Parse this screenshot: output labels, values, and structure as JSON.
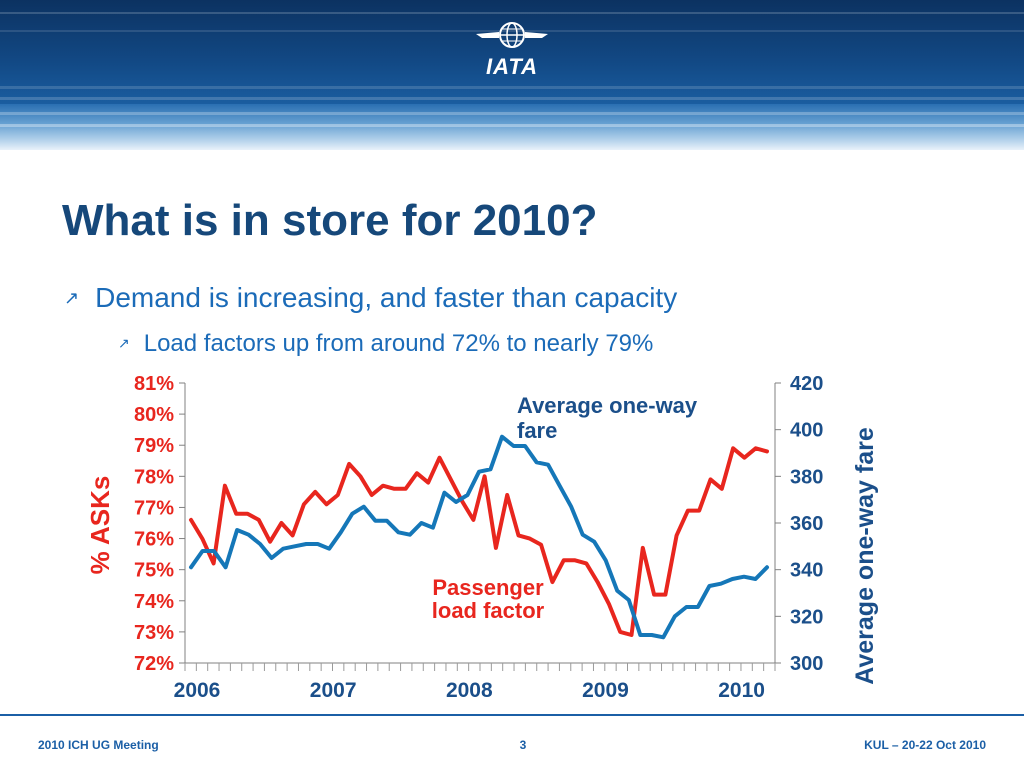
{
  "header": {
    "logo_text": "IATA"
  },
  "slide": {
    "title": "What is in store for 2010?",
    "bullet_1": "Demand is increasing, and faster than capacity",
    "bullet_2": "Load factors up from around 72% to nearly 79%"
  },
  "chart_data": {
    "type": "line",
    "x_ticks": [
      "2006",
      "2007",
      "2008",
      "2009",
      "2010"
    ],
    "ylabel_left": "% ASKs",
    "ylabel_right": "Average one-way fare",
    "left_ticks": [
      "72%",
      "73%",
      "74%",
      "75%",
      "76%",
      "77%",
      "78%",
      "79%",
      "80%",
      "81%"
    ],
    "right_ticks": [
      "300",
      "320",
      "340",
      "360",
      "380",
      "400",
      "420"
    ],
    "ylim_left": [
      72,
      81
    ],
    "ylim_right": [
      300,
      420
    ],
    "grid": false,
    "annotations": {
      "fare": "Average one-way fare",
      "load_factor": "Passenger load factor"
    },
    "colors": {
      "load_factor": "#e8261e",
      "fare": "#1577b8",
      "left_axis_text": "#e8261e",
      "right_axis_text": "#1b4f8a"
    },
    "series": [
      {
        "key": "load_factor",
        "axis": "left",
        "values": [
          76.6,
          76.0,
          75.2,
          77.7,
          76.8,
          76.8,
          76.6,
          75.9,
          76.5,
          76.1,
          77.1,
          77.5,
          77.1,
          77.4,
          78.4,
          78.0,
          77.4,
          77.7,
          77.6,
          77.6,
          78.1,
          77.8,
          78.6,
          77.9,
          77.2,
          76.6,
          78.0,
          75.7,
          77.4,
          76.1,
          76.0,
          75.8,
          74.6,
          75.3,
          75.3,
          75.2,
          74.6,
          73.9,
          73.0,
          72.9,
          75.7,
          74.2,
          74.2,
          76.1,
          76.9,
          76.9,
          77.9,
          77.6,
          78.9,
          78.6,
          78.9,
          78.8
        ]
      },
      {
        "key": "fare",
        "axis": "right",
        "values": [
          341,
          348,
          348,
          341,
          357,
          355,
          351,
          345,
          349,
          350,
          351,
          351,
          349,
          356,
          364,
          367,
          361,
          361,
          356,
          355,
          360,
          358,
          373,
          369,
          372,
          382,
          383,
          397,
          393,
          393,
          386,
          385,
          376,
          367,
          355,
          352,
          344,
          331,
          327,
          312,
          312,
          311,
          320,
          324,
          324,
          333,
          334,
          336,
          337,
          336,
          341
        ]
      }
    ]
  },
  "footer": {
    "left": "2010 ICH UG Meeting",
    "page": "3",
    "right": "KUL – 20-22 Oct 2010"
  }
}
